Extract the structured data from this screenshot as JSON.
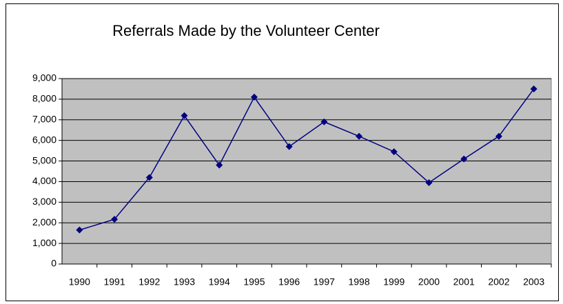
{
  "chart_data": {
    "type": "line",
    "title": "Referrals Made by the Volunteer Center",
    "categories": [
      "1990",
      "1991",
      "1992",
      "1993",
      "1994",
      "1995",
      "1996",
      "1997",
      "1998",
      "1999",
      "2000",
      "2001",
      "2002",
      "2003"
    ],
    "series": [
      {
        "name": "Referrals",
        "color": "#000080",
        "values": [
          1650,
          2170,
          4200,
          7200,
          4800,
          8100,
          5700,
          6900,
          6200,
          5450,
          3950,
          5100,
          6200,
          8500
        ]
      }
    ],
    "ylim": [
      0,
      9000
    ],
    "yticks": [
      0,
      {
        "value": 1000,
        "label": "1,000"
      },
      {
        "value": 2000,
        "label": "2,000"
      },
      {
        "value": 3000,
        "label": "3,000"
      },
      {
        "value": 4000,
        "label": "4,000"
      },
      {
        "value": 5000,
        "label": "5,000"
      },
      {
        "value": 6000,
        "label": "6,000"
      },
      {
        "value": 7000,
        "label": "7,000"
      },
      {
        "value": 8000,
        "label": "8,000"
      },
      {
        "value": 9000,
        "label": "9,000"
      }
    ],
    "grid": true
  }
}
